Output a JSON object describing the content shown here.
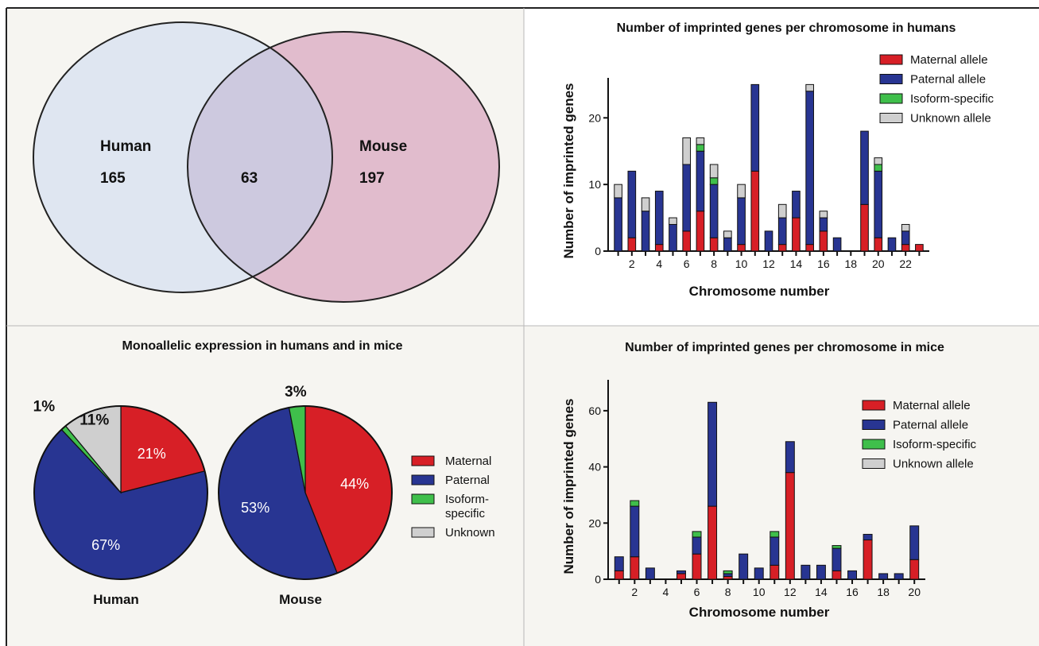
{
  "colors": {
    "panel_bg": "#f6f5f1",
    "maternal": "#d71f26",
    "paternal": "#283592",
    "isoform": "#3fbf4b",
    "unknown": "#cfcfcf",
    "venn_human": "#dfe6f1",
    "venn_mouse": "#e1bccd",
    "venn_overlap": "#cdc9df"
  },
  "venn": {
    "left_label": "Human",
    "left_value": "165",
    "overlap_value": "63",
    "right_label": "Mouse",
    "right_value": "197"
  },
  "chart_data": [
    {
      "type": "bar",
      "stacked": true,
      "title": "Number of imprinted genes per chromosome in humans",
      "xlabel": "Chromosome number",
      "ylabel": "Number of imprinted genes",
      "categories": [
        1,
        2,
        3,
        4,
        5,
        6,
        7,
        8,
        9,
        10,
        11,
        12,
        13,
        14,
        15,
        16,
        17,
        18,
        19,
        20,
        21,
        22,
        23
      ],
      "xticks": [
        "2",
        "4",
        "6",
        "8",
        "10",
        "12",
        "14",
        "16",
        "18",
        "20",
        "22"
      ],
      "yticks": [
        0,
        10,
        20
      ],
      "ylim": [
        0,
        26
      ],
      "legend_position": "top-right",
      "series": [
        {
          "name": "Maternal allele",
          "color_key": "maternal",
          "values": [
            0,
            2,
            0,
            1,
            0,
            3,
            6,
            2,
            0,
            1,
            12,
            0,
            1,
            5,
            1,
            3,
            0,
            0,
            7,
            2,
            0,
            1,
            1
          ]
        },
        {
          "name": "Paternal allele",
          "color_key": "paternal",
          "values": [
            8,
            10,
            6,
            8,
            4,
            10,
            9,
            8,
            2,
            7,
            13,
            3,
            4,
            4,
            23,
            2,
            2,
            0,
            11,
            10,
            2,
            2,
            0
          ]
        },
        {
          "name": "Isoform-specific",
          "color_key": "isoform",
          "values": [
            0,
            0,
            0,
            0,
            0,
            0,
            1,
            1,
            0,
            0,
            0,
            0,
            0,
            0,
            0,
            0,
            0,
            0,
            0,
            1,
            0,
            0,
            0
          ]
        },
        {
          "name": "Unknown allele",
          "color_key": "unknown",
          "values": [
            2,
            0,
            2,
            0,
            1,
            4,
            1,
            2,
            1,
            2,
            0,
            0,
            2,
            0,
            1,
            1,
            0,
            0,
            0,
            1,
            0,
            1,
            0
          ]
        }
      ]
    },
    {
      "type": "pie",
      "title": "Monoallelic expression in humans and in mice",
      "legend_position": "right",
      "legend": [
        {
          "label": "Maternal",
          "color_key": "maternal"
        },
        {
          "label": "Paternal",
          "color_key": "paternal"
        },
        {
          "label": "Isoform-\nspecific",
          "color_key": "isoform"
        },
        {
          "label": "Unknown",
          "color_key": "unknown"
        }
      ],
      "pies": [
        {
          "name": "Human",
          "slices": [
            {
              "label": "Maternal",
              "value": 21,
              "text": "21%",
              "color_key": "maternal"
            },
            {
              "label": "Paternal",
              "value": 67,
              "text": "67%",
              "color_key": "paternal"
            },
            {
              "label": "Isoform-specific",
              "value": 1,
              "text": "1%",
              "color_key": "isoform"
            },
            {
              "label": "Unknown",
              "value": 11,
              "text": "11%",
              "color_key": "unknown"
            }
          ]
        },
        {
          "name": "Mouse",
          "slices": [
            {
              "label": "Maternal",
              "value": 44,
              "text": "44%",
              "color_key": "maternal"
            },
            {
              "label": "Paternal",
              "value": 53,
              "text": "53%",
              "color_key": "paternal"
            },
            {
              "label": "Isoform-specific",
              "value": 3,
              "text": "3%",
              "color_key": "isoform"
            }
          ]
        }
      ]
    },
    {
      "type": "bar",
      "stacked": true,
      "title": "Number of imprinted genes per chromosome in mice",
      "xlabel": "Chromosome number",
      "ylabel": "Number of imprinted genes",
      "categories": [
        1,
        2,
        3,
        4,
        5,
        6,
        7,
        8,
        9,
        10,
        11,
        12,
        13,
        14,
        15,
        16,
        17,
        18,
        19,
        20
      ],
      "xticks": [
        "2",
        "4",
        "6",
        "8",
        "10",
        "12",
        "14",
        "16",
        "18",
        "20"
      ],
      "yticks": [
        0,
        20,
        40,
        60
      ],
      "ylim": [
        0,
        71
      ],
      "legend_position": "top-right",
      "series": [
        {
          "name": "Maternal allele",
          "color_key": "maternal",
          "values": [
            3,
            8,
            0,
            0,
            2,
            9,
            26,
            1,
            0,
            0,
            5,
            38,
            0,
            0,
            3,
            0,
            14,
            0,
            0,
            7
          ]
        },
        {
          "name": "Paternal allele",
          "color_key": "paternal",
          "values": [
            5,
            18,
            4,
            0,
            1,
            6,
            37,
            1,
            9,
            4,
            10,
            11,
            5,
            5,
            8,
            3,
            2,
            2,
            2,
            12
          ]
        },
        {
          "name": "Isoform-specific",
          "color_key": "isoform",
          "values": [
            0,
            2,
            0,
            0,
            0,
            2,
            0,
            1,
            0,
            0,
            2,
            0,
            0,
            0,
            1,
            0,
            0,
            0,
            0,
            0
          ]
        },
        {
          "name": "Unknown allele",
          "color_key": "unknown",
          "values": [
            0,
            0,
            0,
            0,
            0,
            0,
            0,
            0,
            0,
            0,
            0,
            0,
            0,
            0,
            0,
            0,
            0,
            0,
            0,
            0
          ]
        }
      ]
    }
  ]
}
